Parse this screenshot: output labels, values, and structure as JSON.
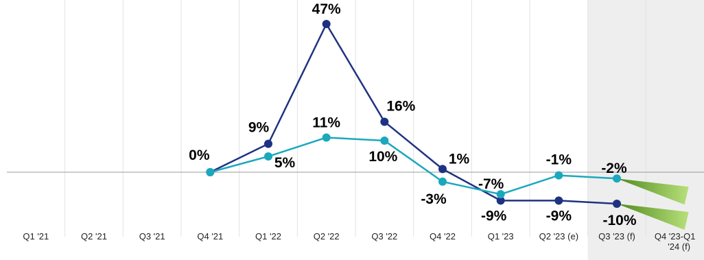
{
  "chart_data": {
    "type": "line",
    "title": "",
    "xlabel": "",
    "ylabel": "",
    "categories": [
      "Q1 '21",
      "Q2 '21",
      "Q3 '21",
      "Q4 '21",
      "Q1 '22",
      "Q2 '22",
      "Q3 '22",
      "Q4 '22",
      "Q1 '23",
      "Q2 '23 (e)",
      "Q3 '23 (f)",
      "Q4 '23-Q1 '24 (f)"
    ],
    "ylim": [
      -16,
      52
    ],
    "grid": true,
    "legend": "none",
    "forecast_shading_from": "Q3 '23 (f)",
    "series": [
      {
        "color": "#1f3282",
        "values": [
          null,
          null,
          null,
          0,
          9,
          47,
          16,
          1,
          -9,
          -9,
          -10,
          null
        ],
        "labels": [
          "",
          "",
          "",
          "0%",
          "9%",
          "47%",
          "16%",
          "1%",
          "-9%",
          "-9%",
          "-10%",
          ""
        ]
      },
      {
        "color": "#1ba8bd",
        "values": [
          null,
          null,
          null,
          0,
          5,
          11,
          10,
          -3,
          -7,
          -1,
          -2,
          null
        ],
        "labels": [
          "",
          "",
          "",
          "",
          "5%",
          "11%",
          "10%",
          "-3%",
          "-7%",
          "-1%",
          "-2%",
          ""
        ]
      }
    ],
    "forecast_wedge_color": "#8cc63f"
  }
}
